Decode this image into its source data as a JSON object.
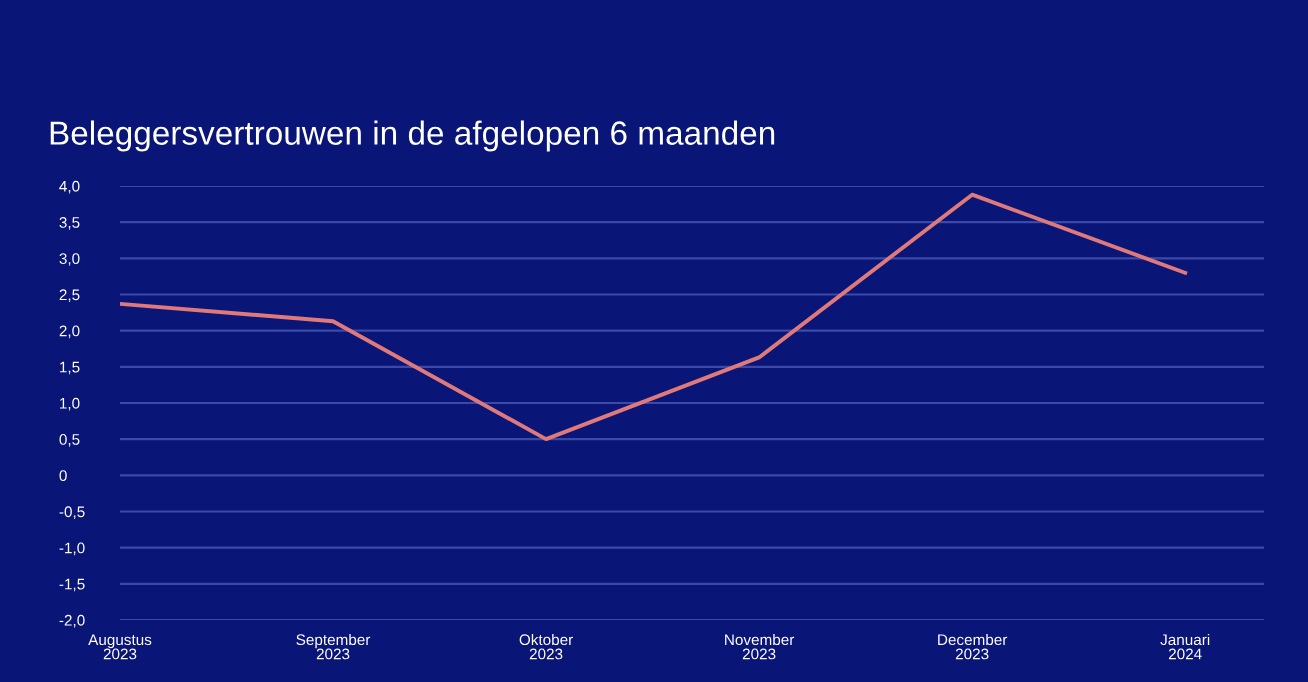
{
  "chart_data": {
    "type": "line",
    "title": "Beleggersvertrouwen in de afgelopen 6 maanden",
    "categories": [
      "Augustus\n2023",
      "September\n2023",
      "Oktober\n2023",
      "November\n2023",
      "December\n2023",
      "Januari\n2024"
    ],
    "series": [
      {
        "color": "#e07a7a",
        "values": [
          2.37,
          2.13,
          0.5,
          1.63,
          3.88,
          2.8
        ]
      }
    ],
    "ylim": [
      -2.0,
      4.0
    ],
    "yticks": [
      {
        "value": -2.0,
        "label": "-2,0"
      },
      {
        "value": -1.5,
        "label": "-1,5"
      },
      {
        "value": -1.0,
        "label": "-1,0"
      },
      {
        "value": -0.5,
        "label": "-0,5"
      },
      0,
      {
        "value": 0.5,
        "label": "0,5"
      },
      {
        "value": 1.0,
        "label": "1,0"
      },
      {
        "value": 1.5,
        "label": "1,5"
      },
      {
        "value": 2.0,
        "label": "2,0"
      },
      {
        "value": 2.5,
        "label": "2,5"
      },
      {
        "value": 3.0,
        "label": "3,0"
      },
      {
        "value": 3.5,
        "label": "3,5"
      },
      {
        "value": 4.0,
        "label": "4,0"
      }
    ],
    "grid": "y",
    "legend": false,
    "marker": "none",
    "line_style": "solid"
  }
}
